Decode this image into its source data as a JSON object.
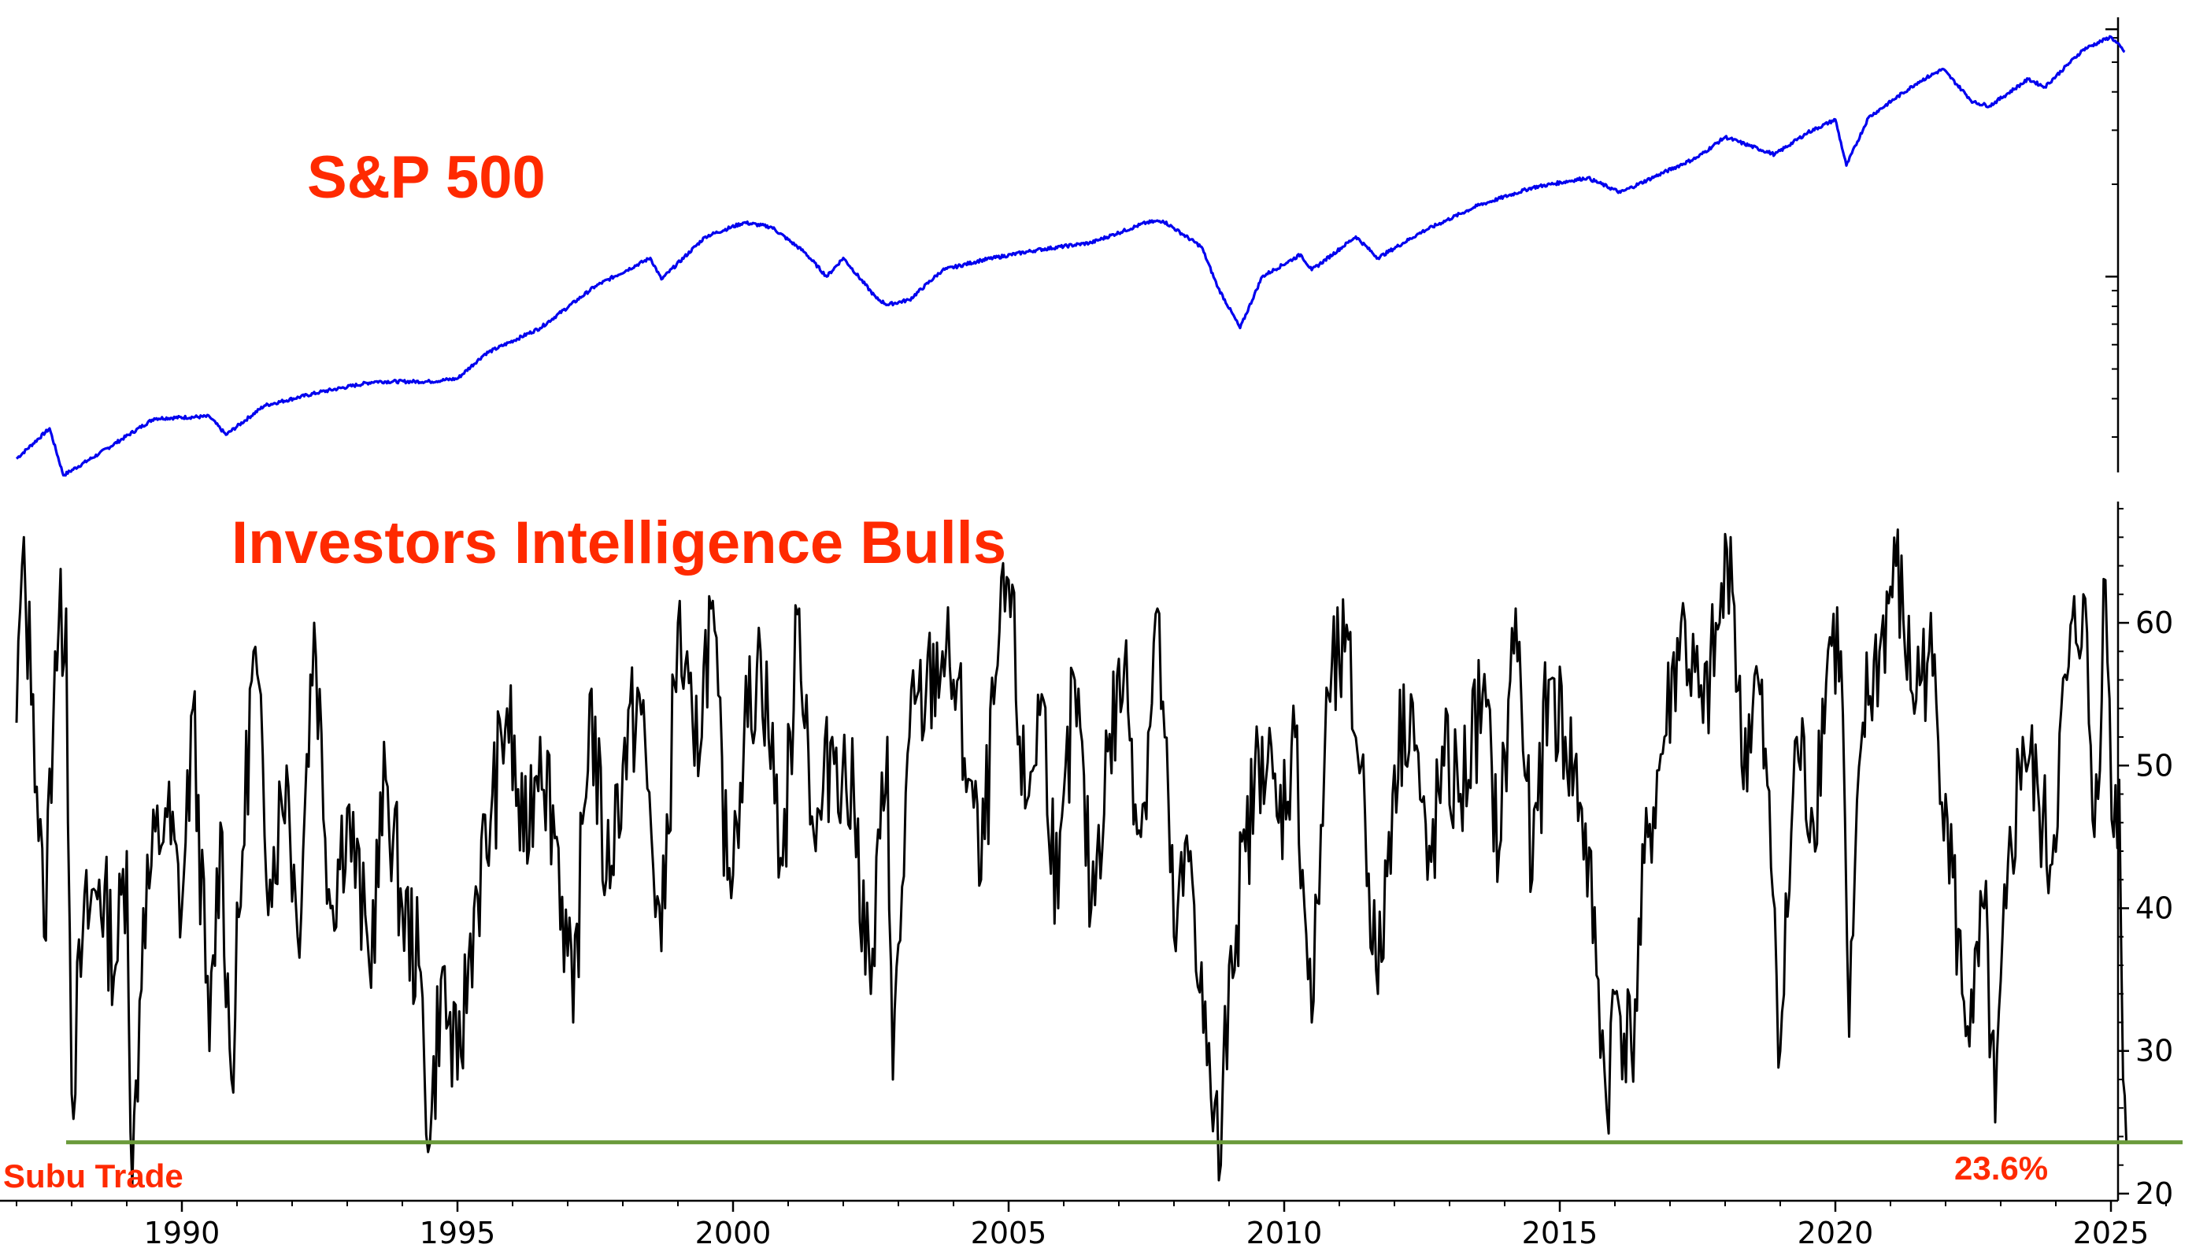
{
  "titles": {
    "top_panel": "S&P 500",
    "bottom_panel": "Investors Intelligence Bulls",
    "threshold_label": "Subu Trade",
    "last_value_label": "23.6%"
  },
  "colors": {
    "spx_line": "#0000ee",
    "bulls_line": "#000000",
    "threshold_line": "#6a9a3a",
    "title_text": "#ff2a00"
  },
  "chart_data": [
    {
      "type": "line",
      "title": "S&P 500",
      "yscale": "log",
      "ytick_labels": [],
      "xlim": [
        1986.7,
        2026.7
      ],
      "ylim": [
        230,
        7000
      ],
      "series": [
        {
          "name": "S&P 500",
          "points": [
            [
              1987.0,
              255
            ],
            [
              1987.6,
              320
            ],
            [
              1987.85,
              225
            ],
            [
              1988.5,
              265
            ],
            [
              1989.5,
              345
            ],
            [
              1990.5,
              350
            ],
            [
              1990.8,
              305
            ],
            [
              1991.5,
              380
            ],
            [
              1992.5,
              420
            ],
            [
              1993.5,
              455
            ],
            [
              1994.5,
              455
            ],
            [
              1995.0,
              465
            ],
            [
              1995.5,
              560
            ],
            [
              1996.5,
              680
            ],
            [
              1997.5,
              930
            ],
            [
              1998.5,
              1150
            ],
            [
              1998.7,
              980
            ],
            [
              1999.5,
              1350
            ],
            [
              2000.2,
              1500
            ],
            [
              2000.7,
              1450
            ],
            [
              2001.3,
              1200
            ],
            [
              2001.7,
              1000
            ],
            [
              2002.0,
              1150
            ],
            [
              2002.6,
              850
            ],
            [
              2002.8,
              810
            ],
            [
              2003.2,
              840
            ],
            [
              2003.8,
              1050
            ],
            [
              2004.5,
              1130
            ],
            [
              2005.5,
              1220
            ],
            [
              2006.5,
              1290
            ],
            [
              2007.5,
              1500
            ],
            [
              2007.8,
              1520
            ],
            [
              2008.5,
              1250
            ],
            [
              2008.8,
              920
            ],
            [
              2009.2,
              680
            ],
            [
              2009.6,
              1000
            ],
            [
              2010.3,
              1180
            ],
            [
              2010.5,
              1050
            ],
            [
              2011.3,
              1350
            ],
            [
              2011.7,
              1150
            ],
            [
              2012.5,
              1400
            ],
            [
              2013.5,
              1700
            ],
            [
              2014.5,
              1950
            ],
            [
              2015.5,
              2100
            ],
            [
              2016.1,
              1880
            ],
            [
              2016.8,
              2150
            ],
            [
              2017.5,
              2450
            ],
            [
              2018.0,
              2850
            ],
            [
              2018.9,
              2500
            ],
            [
              2019.5,
              2950
            ],
            [
              2020.0,
              3250
            ],
            [
              2020.2,
              2300
            ],
            [
              2020.6,
              3300
            ],
            [
              2021.5,
              4300
            ],
            [
              2021.95,
              4750
            ],
            [
              2022.5,
              3700
            ],
            [
              2022.8,
              3600
            ],
            [
              2023.5,
              4400
            ],
            [
              2023.8,
              4150
            ],
            [
              2024.5,
              5500
            ],
            [
              2025.0,
              6050
            ],
            [
              2025.25,
              5400
            ]
          ]
        }
      ]
    },
    {
      "type": "line",
      "title": "Investors Intelligence Bulls",
      "x_ticks": [
        1990,
        1995,
        2000,
        2005,
        2010,
        2015,
        2020,
        2025
      ],
      "y_ticks": [
        20,
        30,
        40,
        50,
        60
      ],
      "xlim": [
        1986.7,
        2026.7
      ],
      "ylim": [
        19.5,
        68.5
      ],
      "series": [
        {
          "name": "Investors Intelligence Bulls",
          "points": [
            [
              1987.0,
              53
            ],
            [
              1987.1,
              64
            ],
            [
              1987.3,
              55
            ],
            [
              1987.5,
              38
            ],
            [
              1987.7,
              58
            ],
            [
              1987.9,
              61
            ],
            [
              1988.0,
              27
            ],
            [
              1988.2,
              38
            ],
            [
              1988.5,
              42
            ],
            [
              1988.8,
              36
            ],
            [
              1989.0,
              44
            ],
            [
              1989.1,
              20
            ],
            [
              1989.3,
              40
            ],
            [
              1989.7,
              47
            ],
            [
              1990.0,
              40
            ],
            [
              1990.2,
              54
            ],
            [
              1990.5,
              30
            ],
            [
              1990.7,
              46
            ],
            [
              1990.9,
              28
            ],
            [
              1991.1,
              44
            ],
            [
              1991.3,
              58
            ],
            [
              1991.6,
              42
            ],
            [
              1991.9,
              50
            ],
            [
              1992.1,
              38
            ],
            [
              1992.4,
              60
            ],
            [
              1992.7,
              40
            ],
            [
              1993.0,
              47
            ],
            [
              1993.4,
              36
            ],
            [
              1993.7,
              49
            ],
            [
              1994.0,
              40
            ],
            [
              1994.3,
              36
            ],
            [
              1994.5,
              23.5
            ],
            [
              1994.7,
              35
            ],
            [
              1995.0,
              28
            ],
            [
              1995.3,
              40
            ],
            [
              1995.6,
              46
            ],
            [
              1995.9,
              54
            ],
            [
              1996.2,
              44
            ],
            [
              1996.5,
              52
            ],
            [
              1996.8,
              45
            ],
            [
              1997.1,
              32
            ],
            [
              1997.4,
              55
            ],
            [
              1997.7,
              42
            ],
            [
              1998.0,
              50
            ],
            [
              1998.3,
              55
            ],
            [
              1998.7,
              37
            ],
            [
              1999.0,
              60
            ],
            [
              1999.3,
              50
            ],
            [
              1999.6,
              61
            ],
            [
              1999.9,
              42
            ],
            [
              2000.2,
              52
            ],
            [
              2000.5,
              58
            ],
            [
              2000.9,
              43
            ],
            [
              2001.2,
              61
            ],
            [
              2001.5,
              44
            ],
            [
              2001.8,
              52
            ],
            [
              2002.2,
              47
            ],
            [
              2002.5,
              34
            ],
            [
              2002.8,
              52
            ],
            [
              2002.9,
              28
            ],
            [
              2003.2,
              52
            ],
            [
              2003.5,
              55
            ],
            [
              2003.8,
              58
            ],
            [
              2004.0,
              56
            ],
            [
              2004.3,
              49
            ],
            [
              2004.5,
              42
            ],
            [
              2004.8,
              57
            ],
            [
              2005.0,
              63
            ],
            [
              2005.3,
              47
            ],
            [
              2005.6,
              55
            ],
            [
              2005.9,
              40
            ],
            [
              2006.2,
              56
            ],
            [
              2006.5,
              40
            ],
            [
              2006.8,
              51
            ],
            [
              2007.1,
              57
            ],
            [
              2007.4,
              45
            ],
            [
              2007.7,
              61
            ],
            [
              2008.0,
              38
            ],
            [
              2008.3,
              44
            ],
            [
              2008.6,
              29
            ],
            [
              2008.85,
              22
            ],
            [
              2009.0,
              36
            ],
            [
              2009.3,
              44
            ],
            [
              2009.6,
              52
            ],
            [
              2009.9,
              46
            ],
            [
              2010.2,
              52
            ],
            [
              2010.5,
              32
            ],
            [
              2010.8,
              55
            ],
            [
              2011.1,
              58
            ],
            [
              2011.4,
              50
            ],
            [
              2011.7,
              34
            ],
            [
              2012.0,
              50
            ],
            [
              2012.3,
              55
            ],
            [
              2012.6,
              42
            ],
            [
              2012.9,
              50
            ],
            [
              2013.2,
              48
            ],
            [
              2013.6,
              55
            ],
            [
              2013.9,
              44
            ],
            [
              2014.2,
              61
            ],
            [
              2014.5,
              42
            ],
            [
              2014.8,
              56
            ],
            [
              2015.1,
              52
            ],
            [
              2015.4,
              47
            ],
            [
              2015.7,
              35
            ],
            [
              2015.85,
              26
            ],
            [
              2016.0,
              34
            ],
            [
              2016.3,
              30
            ],
            [
              2016.6,
              45
            ],
            [
              2016.9,
              52
            ],
            [
              2017.2,
              60
            ],
            [
              2017.6,
              53
            ],
            [
              2017.9,
              60
            ],
            [
              2018.1,
              66
            ],
            [
              2018.3,
              50
            ],
            [
              2018.6,
              56
            ],
            [
              2018.9,
              40
            ],
            [
              2019.0,
              30
            ],
            [
              2019.3,
              52
            ],
            [
              2019.6,
              46
            ],
            [
              2019.9,
              59
            ],
            [
              2020.1,
              58
            ],
            [
              2020.25,
              31
            ],
            [
              2020.5,
              53
            ],
            [
              2020.8,
              58
            ],
            [
              2021.1,
              64
            ],
            [
              2021.4,
              55
            ],
            [
              2021.7,
              58
            ],
            [
              2022.0,
              48
            ],
            [
              2022.3,
              34
            ],
            [
              2022.5,
              32
            ],
            [
              2022.7,
              40
            ],
            [
              2022.9,
              25
            ],
            [
              2023.1,
              40
            ],
            [
              2023.4,
              52
            ],
            [
              2023.7,
              47
            ],
            [
              2023.9,
              43
            ],
            [
              2024.2,
              56
            ],
            [
              2024.5,
              62
            ],
            [
              2024.7,
              45
            ],
            [
              2024.9,
              63
            ],
            [
              2025.05,
              45
            ],
            [
              2025.15,
              49
            ],
            [
              2025.22,
              28
            ],
            [
              2025.28,
              23.6
            ]
          ]
        }
      ],
      "reference_line": {
        "label": "Subu Trade",
        "y": 23.6
      },
      "annotation": "23.6%"
    }
  ]
}
